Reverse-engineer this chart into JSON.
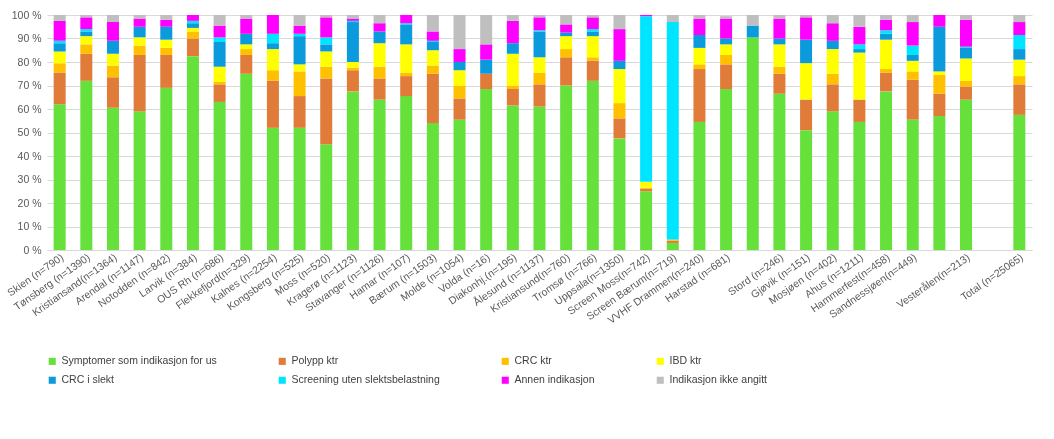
{
  "chart_data": {
    "type": "bar",
    "stacked": true,
    "grid": "y",
    "legend": "bottom",
    "categories": [
      "Skien (n=790)",
      "Tønsberg (n=1390)",
      "Kristiansand(n=1364)",
      "Arendal (n=1147)",
      "Notodden (n=842)",
      "Larvik (n=384)",
      "OUS Rh (n=686)",
      "Flekkefjord(n=329)",
      "Kalnes (n=2254)",
      "Kongsberg (n=525)",
      "Moss (n=520)",
      "Kragerø (n=1123)",
      "Stavanger (n=1126)",
      "Hamar (n=107)",
      "Bærum (n=1503)",
      "Molde (n=1054)",
      "Volda (n=16)",
      "Diakonhj.(n=195)",
      "Ålesund (n=1137)",
      "Kristiansund(n=760)",
      "Tromsø (n=766)",
      "Uppsala(n=1350)",
      "Screen Moss(n=742)",
      "Screen Bærum(n=719)",
      "VVHF Drammen(n=240)",
      "Harstad (n=681)",
      null,
      "Stord (n=246)",
      "Gjøvik (n=151)",
      "Mosjøen (n=402)",
      "Ahus (n=1211)",
      "Hammerfest(n=458)",
      "Sandnessjøen(n=449)",
      null,
      "Vesterålen(n=213)",
      null,
      "Total (n=25065)"
    ],
    "ylim": [
      0,
      100
    ],
    "yticks": [
      {
        "value": 0,
        "label": "0 %"
      },
      {
        "value": 10,
        "label": "10 %"
      },
      {
        "value": 20,
        "label": "20 %"
      },
      {
        "value": 30,
        "label": "30 %"
      },
      {
        "value": 40,
        "label": "40 %"
      },
      {
        "value": 50,
        "label": "50 %"
      },
      {
        "value": 60,
        "label": "60 %"
      },
      {
        "value": 70,
        "label": "70 %"
      },
      {
        "value": 80,
        "label": "80 %"
      },
      {
        "value": 90,
        "label": "90 %"
      },
      {
        "value": 100,
        "label": "100 %"
      }
    ],
    "series": [
      {
        "name": "Symptomer som indikasjon for us",
        "color": "#66e03a",
        "values": [
          62,
          72,
          60.5,
          59,
          69,
          82.5,
          63,
          75,
          52,
          52,
          45,
          67.5,
          64,
          65.5,
          54,
          55.5,
          68.5,
          61.5,
          61,
          70,
          72,
          47.5,
          25,
          3,
          54.5,
          68.5,
          90.5,
          66.5,
          51,
          59,
          54.5,
          67.5,
          55.5,
          57,
          64,
          null,
          57.5
        ]
      },
      {
        "name": "Polypp ktr",
        "color": "#e07b39",
        "values": [
          13.5,
          11.5,
          13,
          24,
          14,
          7.5,
          7.5,
          8,
          20,
          13.5,
          28,
          9,
          9,
          8.5,
          21,
          9,
          6.5,
          7,
          9.5,
          12,
          8.5,
          8.5,
          1,
          1,
          22.5,
          10.5,
          0,
          8.5,
          13,
          11.5,
          9.5,
          8,
          17,
          9.5,
          5.5,
          null,
          13
        ]
      },
      {
        "name": "CRC ktr",
        "color": "#ffc000",
        "values": [
          4,
          4,
          5,
          4,
          3,
          3,
          1,
          2.5,
          4.5,
          10.5,
          5,
          1,
          5,
          1.5,
          3.5,
          5.5,
          0,
          1.5,
          5,
          3.5,
          1.5,
          6.5,
          0.5,
          0.5,
          2,
          4,
          0,
          3,
          0,
          4.5,
          0,
          1.5,
          3.5,
          8,
          2.5,
          null,
          3.5
        ]
      },
      {
        "name": "IBD ktr",
        "color": "#ffff00",
        "values": [
          5,
          3.5,
          5,
          3.5,
          3.5,
          1.5,
          6.5,
          2,
          9,
          3,
          6.5,
          2.5,
          10,
          12,
          6.5,
          6.5,
          0,
          13.5,
          6.5,
          5.5,
          9,
          14.5,
          2.5,
          0,
          7,
          4.5,
          0,
          9.5,
          15.5,
          10.5,
          20,
          12.5,
          4.5,
          1.5,
          9.5,
          null,
          7
        ]
      },
      {
        "name": "CRC i slekt",
        "color": "#0b9bdc",
        "values": [
          3.5,
          2,
          5.5,
          4.5,
          5.5,
          2,
          10.5,
          4.5,
          2.5,
          12,
          3,
          17,
          5,
          8.5,
          3.5,
          3.5,
          6,
          4.5,
          11,
          1.5,
          2,
          3.5,
          0,
          0,
          5.5,
          2.5,
          5,
          2.5,
          10,
          3.5,
          1.5,
          2.5,
          2.5,
          19,
          4.5,
          null,
          4.5
        ]
      },
      {
        "name": "Screening uten slektsbelastning",
        "color": "#00e5ff",
        "values": [
          1,
          1,
          0,
          0,
          0,
          1,
          2,
          0,
          4,
          1,
          3,
          0.5,
          0,
          0.5,
          0.5,
          0,
          0,
          0,
          0.5,
          0,
          1,
          0,
          70.5,
          92.5,
          0,
          0,
          0,
          0,
          0,
          0,
          2,
          1.5,
          4,
          0,
          0.5,
          null,
          6
        ]
      },
      {
        "name": "Annen indikasjon",
        "color": "#ff00ff",
        "values": [
          8.5,
          5,
          8,
          3.5,
          3,
          2.5,
          5,
          6.5,
          8,
          3.5,
          8.5,
          1,
          3.5,
          3.5,
          4,
          5.5,
          6.5,
          9.5,
          5.5,
          3.5,
          5,
          13.5,
          0.5,
          0,
          7,
          8.5,
          0,
          8.5,
          9.5,
          7.5,
          7.5,
          4.5,
          10,
          5,
          11.5,
          null,
          5.5
        ]
      },
      {
        "name": "Indikasjon ikke angitt",
        "color": "#bfbfbf",
        "values": [
          2.5,
          1,
          3,
          1.5,
          2,
          0,
          4.5,
          1.5,
          0,
          4.5,
          1,
          1.5,
          3.5,
          0,
          7,
          14.5,
          12.5,
          2.5,
          1,
          4,
          1,
          6,
          0,
          3,
          1.5,
          1,
          4.5,
          1.5,
          1,
          3.5,
          5,
          2,
          3,
          0,
          2,
          null,
          3
        ]
      }
    ]
  }
}
